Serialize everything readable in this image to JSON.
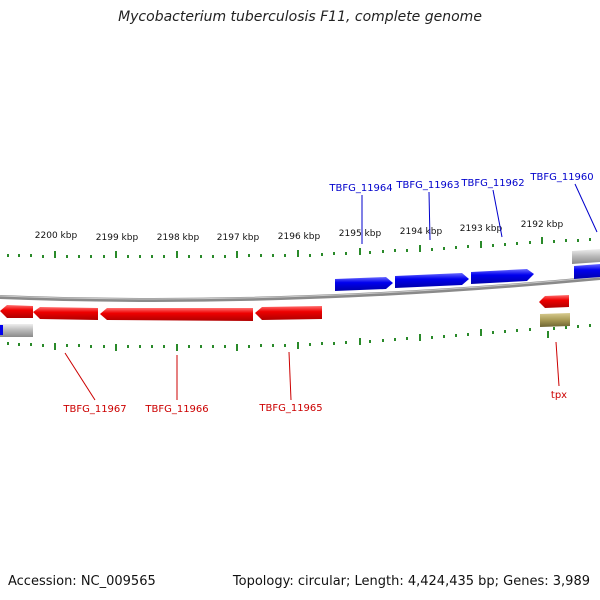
{
  "title": "Mycobacterium tuberculosis F11, complete genome",
  "footer": {
    "accession": "Accession: NC_009565",
    "topology": "Topology: circular; Length: 4,424,435 bp; Genes: 3,989"
  },
  "colors": {
    "forward": "#0000ee",
    "reverse": "#ee0000",
    "tick": "#2a8a2a",
    "backbone": "#888888",
    "misc": "#a89a55",
    "label_forward": "#0000cc",
    "label_reverse": "#cc0000"
  },
  "scale_labels": [
    "2200 kbp",
    "2199 kbp",
    "2198 kbp",
    "2197 kbp",
    "2196 kbp",
    "2195 kbp",
    "2194 kbp",
    "2193 kbp",
    "2192 kbp"
  ],
  "forward_labels": [
    "TBFG_11964",
    "TBFG_11963",
    "TBFG_11962",
    "TBFG_11960"
  ],
  "reverse_labels": [
    "TBFG_11967",
    "TBFG_11966",
    "TBFG_11965",
    "tpx"
  ]
}
